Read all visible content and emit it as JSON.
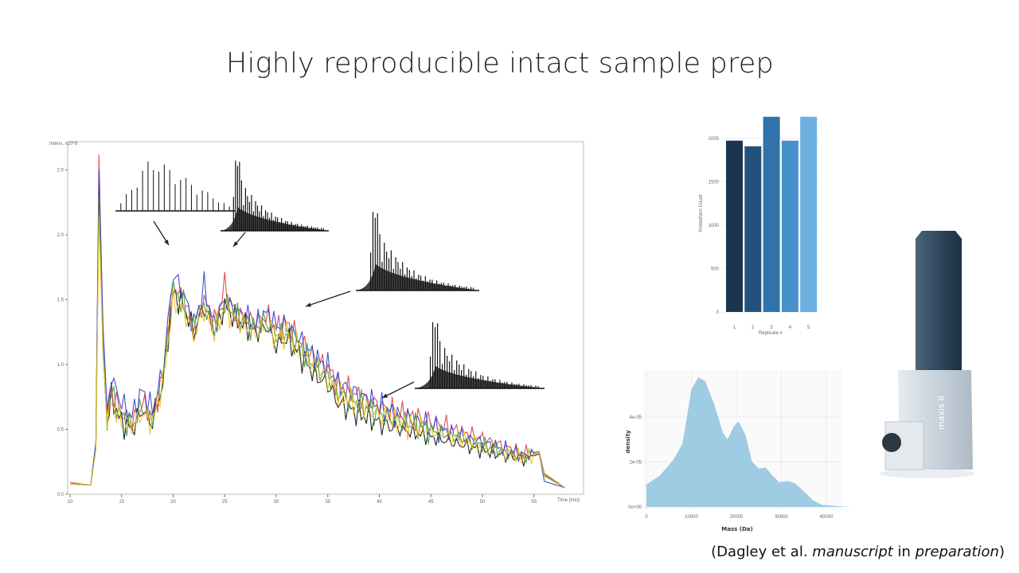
{
  "slide": {
    "title": "Highly reproducible intact sample prep",
    "citation": {
      "prefix": "(Dagley et al. ",
      "italic1": "manuscript",
      "middle": " in ",
      "italic2": "preparation",
      "suffix": ")"
    },
    "instrument_label": "maxis II"
  },
  "chart_data": [
    {
      "type": "line",
      "ylabel": "Intens. x10^8",
      "xlabel": "Time [min]",
      "xlim": [
        10,
        58
      ],
      "ylim": [
        0,
        2.6
      ],
      "xticks": [
        "10",
        "15",
        "20",
        "25",
        "30",
        "35",
        "40",
        "45",
        "50",
        "55"
      ],
      "yticks": [
        "0.0",
        "0.5",
        "1.0",
        "1.5",
        "2.0",
        "2.5"
      ],
      "x": [
        10,
        12,
        12.5,
        12.8,
        13.2,
        13.6,
        14,
        15,
        16,
        17,
        18,
        19,
        20,
        21,
        22,
        23,
        24,
        25,
        26,
        27,
        28,
        29,
        30,
        31,
        32,
        33,
        34,
        35,
        36,
        38,
        40,
        42,
        44,
        46,
        48,
        50,
        52,
        54,
        55.5,
        56,
        58
      ],
      "series": [
        {
          "color": "#111111",
          "values": [
            0.08,
            0.07,
            0.35,
            2.4,
            1.1,
            0.55,
            0.75,
            0.55,
            0.5,
            0.65,
            0.55,
            0.85,
            1.55,
            1.45,
            1.25,
            1.45,
            1.25,
            1.45,
            1.35,
            1.3,
            1.25,
            1.3,
            1.15,
            1.2,
            1.1,
            1.0,
            0.9,
            0.85,
            0.7,
            0.62,
            0.55,
            0.5,
            0.46,
            0.42,
            0.38,
            0.34,
            0.3,
            0.27,
            0.31,
            0.14,
            0.05
          ]
        },
        {
          "color": "#e23b3b",
          "values": [
            0.09,
            0.07,
            0.36,
            2.62,
            1.2,
            0.6,
            0.8,
            0.62,
            0.55,
            0.7,
            0.6,
            0.9,
            1.6,
            1.5,
            1.3,
            1.5,
            1.32,
            1.6,
            1.4,
            1.36,
            1.32,
            1.38,
            1.28,
            1.32,
            1.22,
            1.12,
            1.02,
            0.98,
            0.84,
            0.76,
            0.68,
            0.62,
            0.58,
            0.53,
            0.48,
            0.43,
            0.37,
            0.31,
            0.33,
            0.16,
            0.05
          ]
        },
        {
          "color": "#2f3fd0",
          "values": [
            0.08,
            0.07,
            0.4,
            2.5,
            1.3,
            0.65,
            0.9,
            0.7,
            0.6,
            0.8,
            0.65,
            0.95,
            1.7,
            1.55,
            1.3,
            1.6,
            1.3,
            1.5,
            1.4,
            1.38,
            1.3,
            1.4,
            1.3,
            1.3,
            1.22,
            1.12,
            1.04,
            0.98,
            0.86,
            0.77,
            0.68,
            0.6,
            0.56,
            0.5,
            0.45,
            0.4,
            0.35,
            0.3,
            0.32,
            0.1,
            0.05
          ]
        },
        {
          "color": "#3ca03c",
          "values": [
            0.08,
            0.07,
            0.35,
            2.3,
            1.15,
            0.58,
            0.78,
            0.6,
            0.52,
            0.68,
            0.58,
            0.88,
            1.58,
            1.46,
            1.28,
            1.46,
            1.28,
            1.48,
            1.38,
            1.32,
            1.28,
            1.34,
            1.22,
            1.25,
            1.16,
            1.06,
            0.96,
            0.92,
            0.78,
            0.7,
            0.62,
            0.56,
            0.52,
            0.47,
            0.43,
            0.38,
            0.33,
            0.29,
            0.32,
            0.15,
            0.05
          ]
        },
        {
          "color": "#f0c020",
          "values": [
            0.08,
            0.07,
            0.34,
            2.15,
            1.1,
            0.55,
            0.7,
            0.55,
            0.5,
            0.62,
            0.55,
            0.85,
            1.5,
            1.42,
            1.22,
            1.42,
            1.24,
            1.44,
            1.34,
            1.3,
            1.24,
            1.3,
            1.2,
            1.24,
            1.14,
            1.04,
            0.95,
            0.9,
            0.77,
            0.69,
            0.61,
            0.55,
            0.51,
            0.46,
            0.42,
            0.37,
            0.32,
            0.28,
            0.32,
            0.14,
            0.05
          ]
        }
      ]
    },
    {
      "type": "bar",
      "categories": [
        "1",
        "2",
        "3",
        "4",
        "5"
      ],
      "values": [
        1975,
        1910,
        2250,
        1975,
        2250
      ],
      "colors": [
        "#1b3550",
        "#22527a",
        "#2f73aa",
        "#4690cc",
        "#6ab0e0"
      ],
      "xlabel": "Replicate #",
      "ylabel": "Proteoform Count",
      "yticks": [
        "0",
        "500",
        "1000",
        "1500",
        "2000"
      ],
      "ylim": [
        0,
        2250
      ],
      "grid": true
    },
    {
      "type": "area",
      "xlabel": "Mass (Da)",
      "ylabel": "density",
      "xticks": [
        "0",
        "10000",
        "20000",
        "30000",
        "40000"
      ],
      "yticks": [
        "0e+00",
        "2e-05",
        "4e-05"
      ],
      "xlim": [
        0,
        47000
      ],
      "ylim": [
        0,
        6e-05
      ],
      "fill": "#9fcbe3",
      "grid": true,
      "x": [
        0,
        3000,
        6000,
        8000,
        10000,
        11500,
        13000,
        15000,
        17000,
        18000,
        19500,
        20500,
        22000,
        23500,
        25000,
        26500,
        28000,
        29500,
        31500,
        33000,
        35000,
        37000,
        39000,
        43000,
        46000
      ],
      "y": [
        1e-05,
        1.4e-05,
        2.1e-05,
        2.8e-05,
        5.2e-05,
        5.75e-05,
        5.6e-05,
        4.6e-05,
        3.3e-05,
        3e-05,
        3.6e-05,
        3.8e-05,
        3.2e-05,
        2e-05,
        1.7e-05,
        1.75e-05,
        1.4e-05,
        1.1e-05,
        1.15e-05,
        1.05e-05,
        7e-06,
        3e-06,
        1e-06,
        3e-07,
        0
      ]
    }
  ]
}
